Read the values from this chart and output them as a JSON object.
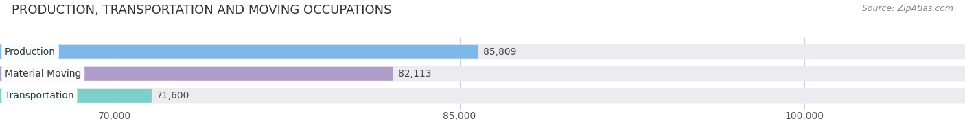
{
  "title": "PRODUCTION, TRANSPORTATION AND MOVING OCCUPATIONS",
  "source": "Source: ZipAtlas.com",
  "categories": [
    "Production",
    "Material Moving",
    "Transportation"
  ],
  "values": [
    85809,
    82113,
    71600
  ],
  "bar_colors": [
    "#7cb8e8",
    "#b09cc8",
    "#7ececa"
  ],
  "bar_labels": [
    "85,809",
    "82,113",
    "71,600"
  ],
  "xmin": 65000,
  "xmax": 107000,
  "xlim_display": [
    68000,
    107000
  ],
  "xticks": [
    70000,
    85000,
    100000
  ],
  "xtick_labels": [
    "70,000",
    "85,000",
    "100,000"
  ],
  "background_color": "#ffffff",
  "bar_bg_color": "#ebebf0",
  "bar_row_bg": "#f5f5f8",
  "title_fontsize": 13,
  "label_fontsize": 10,
  "value_fontsize": 10,
  "source_fontsize": 9
}
